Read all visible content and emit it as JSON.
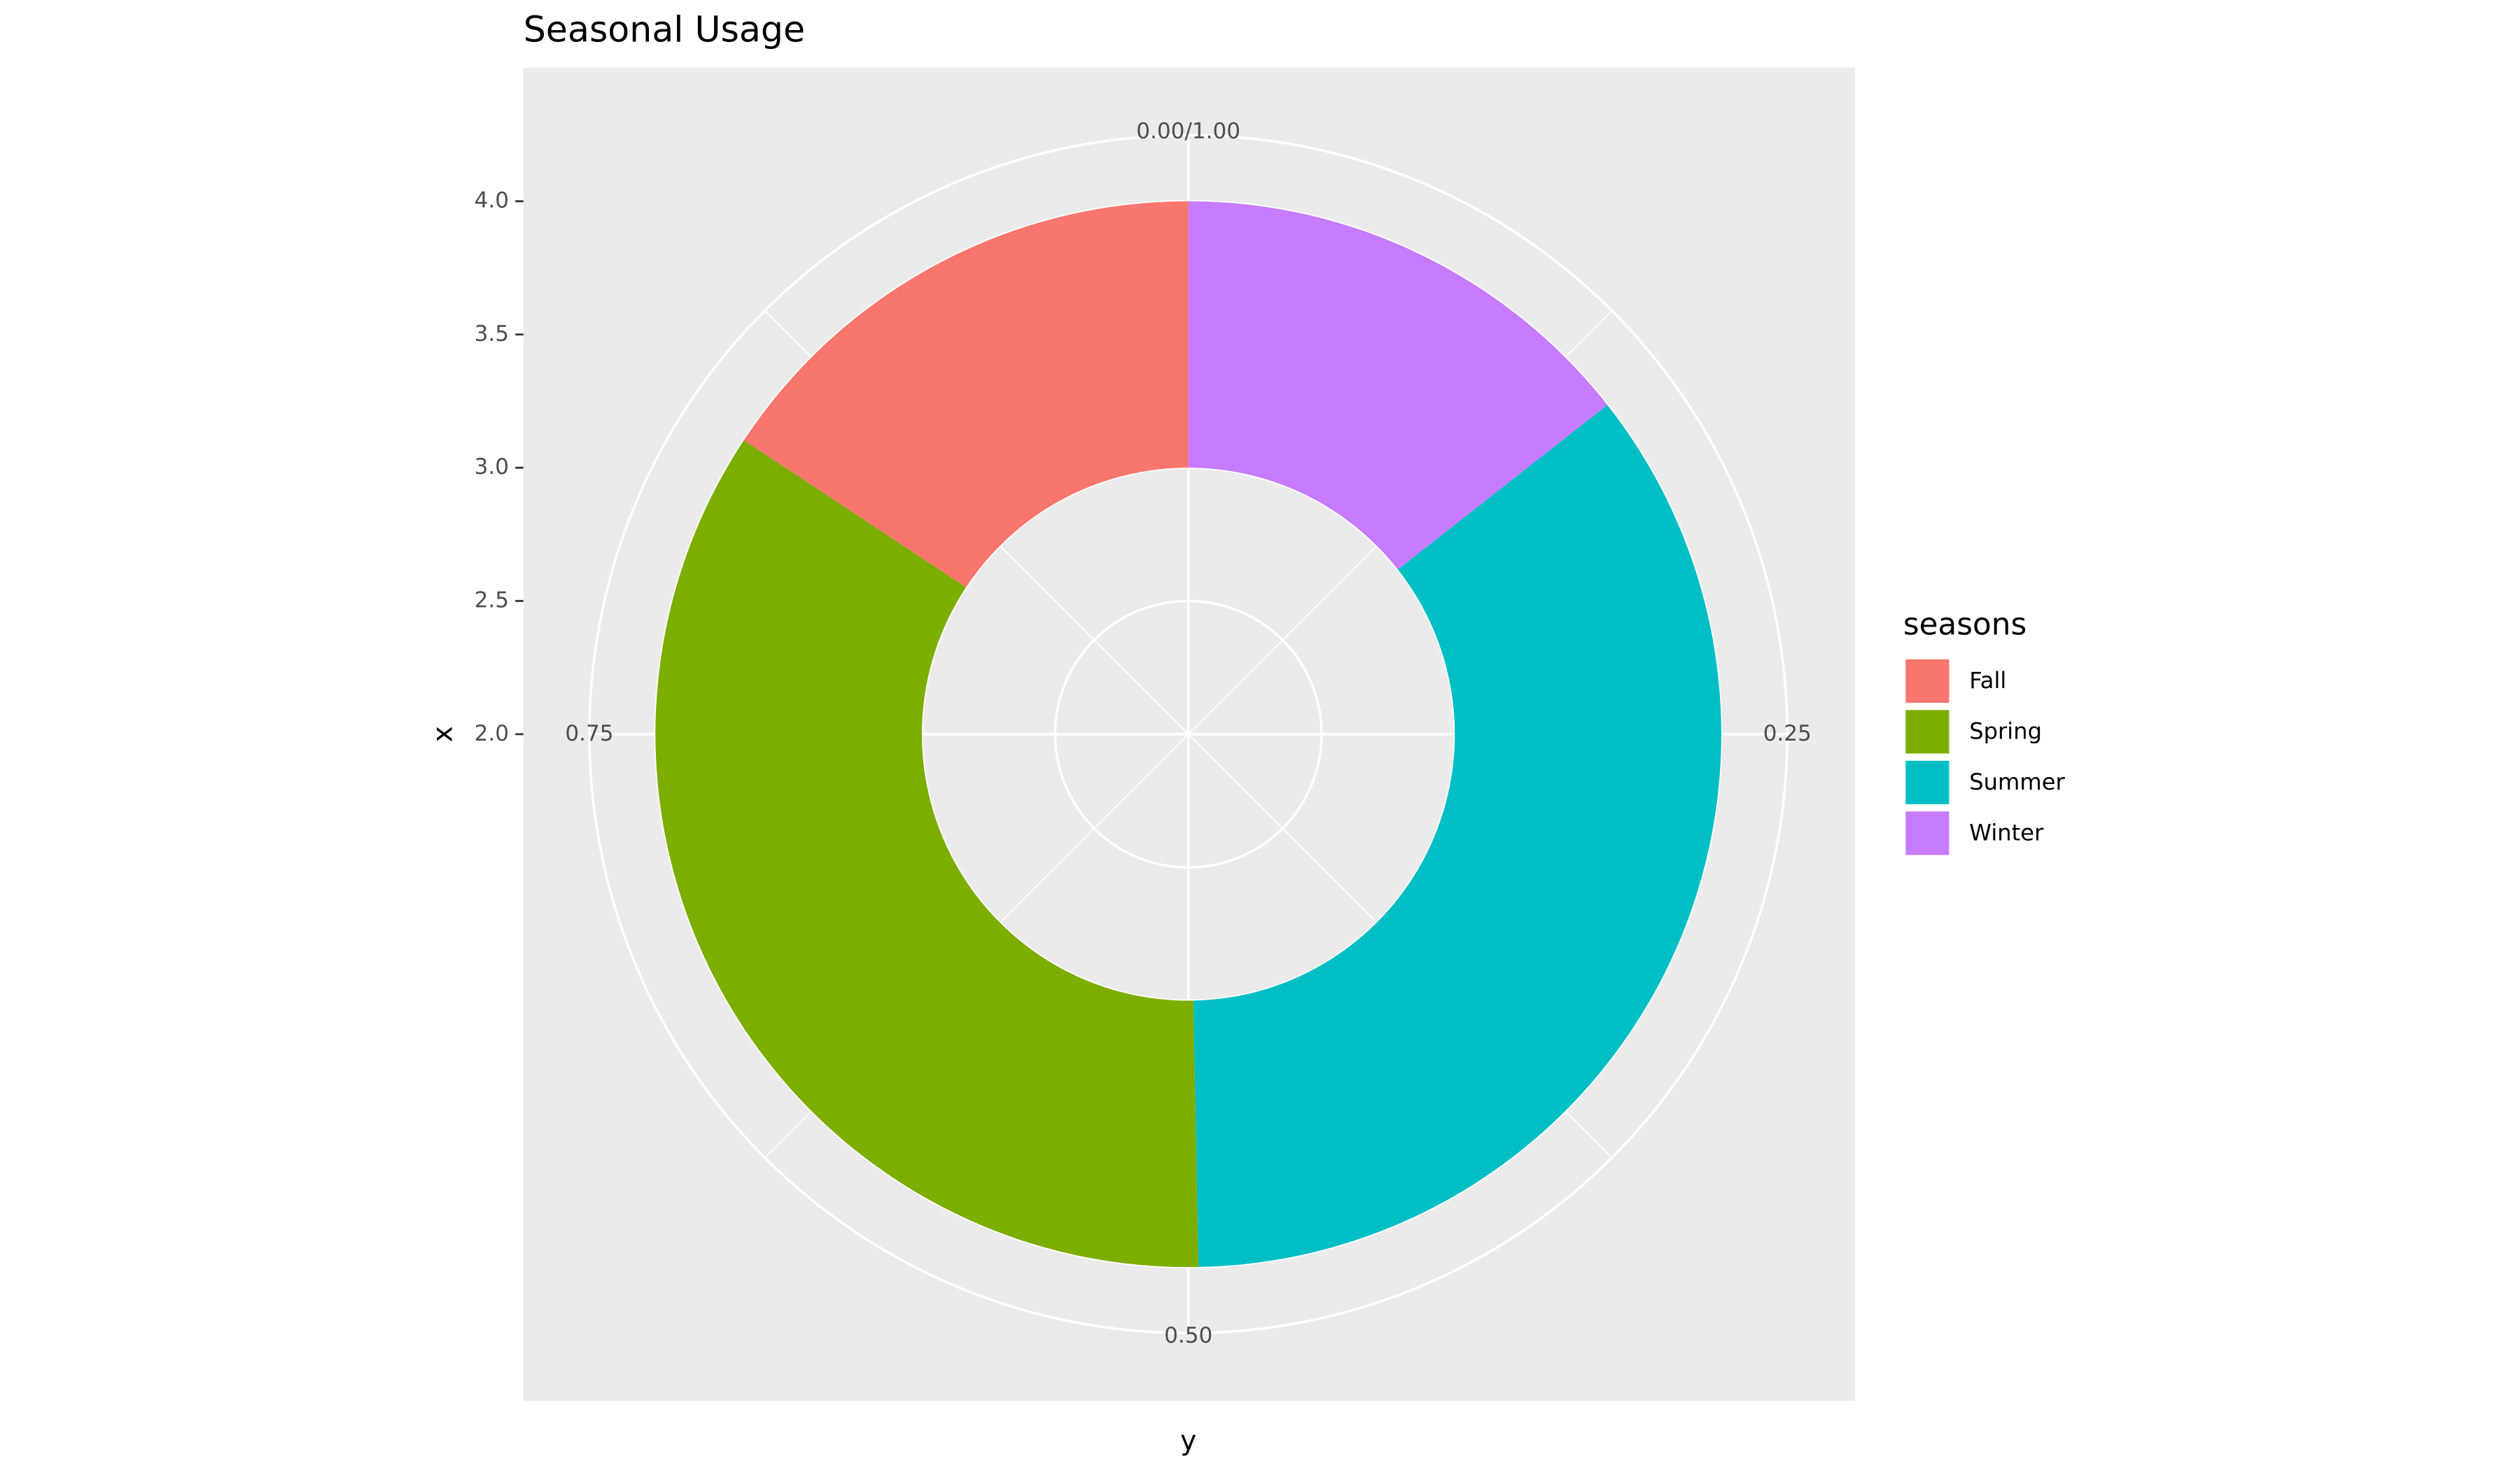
{
  "chart_data": {
    "type": "donut",
    "title": "Seasonal Usage",
    "x_label": "x",
    "y_label": "y",
    "legend_title": "seasons",
    "series": [
      {
        "name": "Fall",
        "color": "#F8766D",
        "value": 0.157
      },
      {
        "name": "Spring",
        "color": "#7CAE00",
        "value": 0.346
      },
      {
        "name": "Summer",
        "color": "#00BFC4",
        "value": 0.353
      },
      {
        "name": "Winter",
        "color": "#C77CFF",
        "value": 0.144
      }
    ],
    "ring": [
      3,
      4
    ],
    "xlim": [
      2,
      4
    ],
    "xticks": [
      {
        "value": 2,
        "label": "2.0"
      },
      2.5,
      {
        "value": 3,
        "label": "3.0"
      },
      3.5,
      {
        "value": 4,
        "label": "4.0"
      }
    ],
    "yticks": [
      {
        "value": 0,
        "label": "0.00/1.00"
      },
      0.25,
      {
        "value": 0.5,
        "label": "0.50"
      },
      0.75
    ],
    "yminor": [
      0.125,
      0.375,
      0.625,
      0.875
    ],
    "grid": true
  }
}
